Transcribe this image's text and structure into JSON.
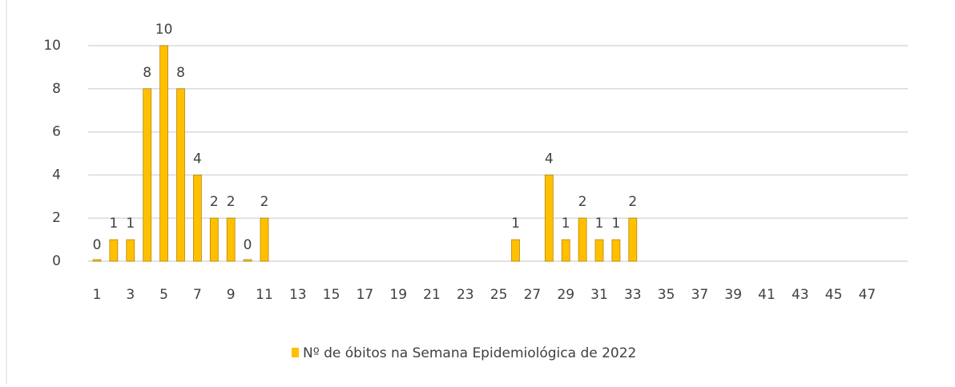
{
  "chart_data": {
    "type": "bar",
    "categories": [
      "1",
      null,
      "3",
      null,
      "5",
      null,
      "7",
      null,
      "9",
      null,
      "11",
      null,
      "13",
      null,
      "15",
      null,
      "17",
      null,
      "19",
      null,
      "21",
      null,
      "23",
      null,
      "25",
      null,
      "27",
      null,
      "29",
      null,
      "31",
      null,
      "33",
      null,
      "35",
      null,
      "37",
      null,
      "39",
      null,
      "41",
      null,
      "43",
      null,
      "45",
      null,
      "47"
    ],
    "series": [
      {
        "name": "Nº de óbitos na Semana Epidemiológica de 2022",
        "color": "#ffc000",
        "values": [
          0,
          1,
          1,
          8,
          10,
          8,
          4,
          2,
          2,
          0,
          2,
          null,
          null,
          null,
          null,
          null,
          null,
          null,
          null,
          null,
          null,
          null,
          null,
          null,
          null,
          1,
          null,
          4,
          1,
          2,
          1,
          1,
          2,
          null,
          null,
          null,
          null,
          null,
          null,
          null,
          null,
          null,
          null,
          null,
          null,
          null,
          null
        ]
      }
    ],
    "ylim": [
      0,
      10
    ],
    "yticks": [
      0,
      2,
      4,
      6,
      8,
      10
    ],
    "grid": true,
    "legend": "bottom"
  }
}
